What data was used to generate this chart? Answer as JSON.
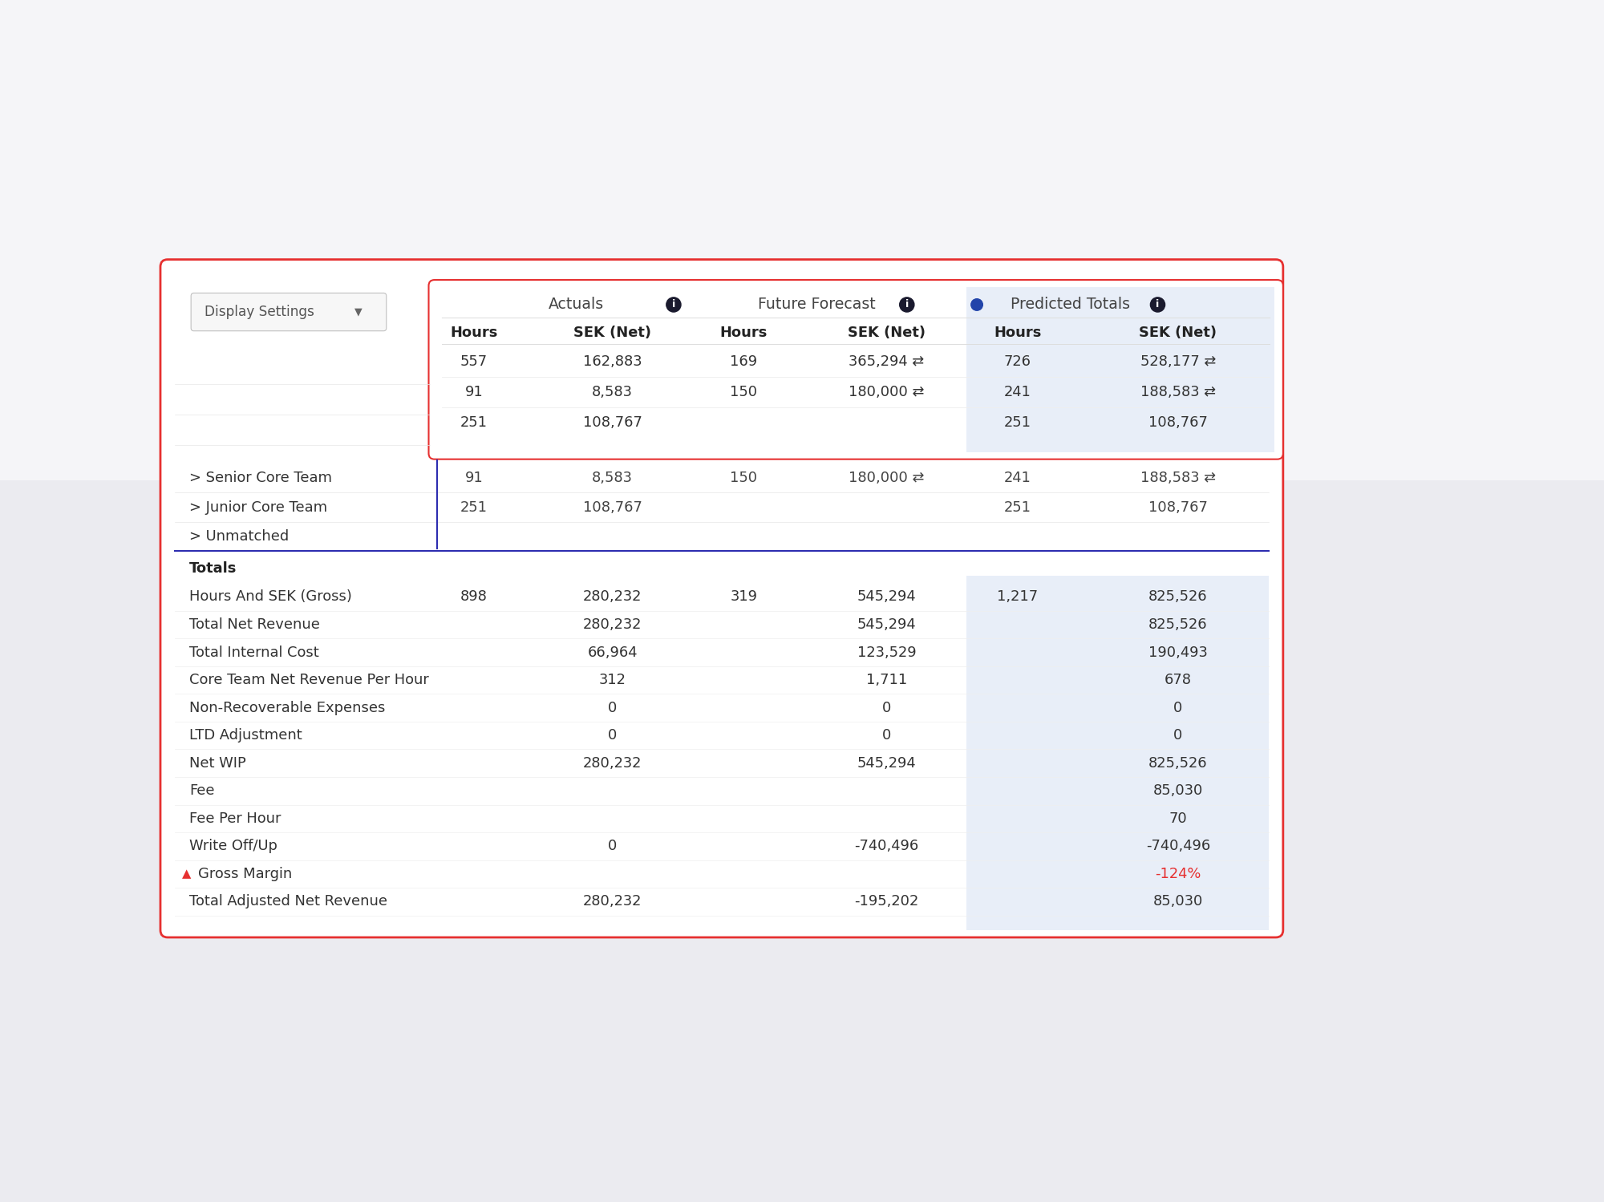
{
  "bg_color": "#ebebf0",
  "card_bg": "#ffffff",
  "card_border": "#e63030",
  "card_border2": "#2d2db0",
  "display_settings_label": "Display Settings",
  "section_header_actuals": "Actuals",
  "section_header_forecast": "Future Forecast",
  "section_header_predicted": "Predicted Totals",
  "top_rows": [
    [
      "557",
      "162,883",
      "169",
      "365,294 ⇄",
      "726",
      "528,177 ⇄"
    ],
    [
      "91",
      "8,583",
      "150",
      "180,000 ⇄",
      "241",
      "188,583 ⇄"
    ],
    [
      "251",
      "108,767",
      "",
      "",
      "251",
      "108,767"
    ]
  ],
  "tree_labels": [
    "> Senior Core Team",
    "> Junior Core Team",
    "> Unmatched"
  ],
  "tree_data": [
    [
      "91",
      "8,583",
      "150",
      "180,000 ⇄",
      "241",
      "188,583 ⇄"
    ],
    [
      "251",
      "108,767",
      "",
      "",
      "251",
      "108,767"
    ],
    [
      "",
      "",
      "",
      "",
      "",
      ""
    ]
  ],
  "section_totals_label": "Totals",
  "totals_rows": [
    [
      "Hours And SEK (Gross)",
      "898",
      "280,232",
      "319",
      "545,294",
      "1,217",
      "825,526"
    ],
    [
      "Total Net Revenue",
      "",
      "280,232",
      "",
      "545,294",
      "",
      "825,526"
    ],
    [
      "Total Internal Cost",
      "",
      "66,964",
      "",
      "123,529",
      "",
      "190,493"
    ],
    [
      "Core Team Net Revenue Per Hour",
      "",
      "312",
      "",
      "1,711",
      "",
      "678"
    ],
    [
      "Non-Recoverable Expenses",
      "",
      "0",
      "",
      "0",
      "",
      "0"
    ],
    [
      "LTD Adjustment",
      "",
      "0",
      "",
      "0",
      "",
      "0"
    ],
    [
      "Net WIP",
      "",
      "280,232",
      "",
      "545,294",
      "",
      "825,526"
    ],
    [
      "Fee",
      "",
      "",
      "",
      "",
      "",
      "85,030"
    ],
    [
      "Fee Per Hour",
      "",
      "",
      "",
      "",
      "",
      "70"
    ],
    [
      "Write Off/Up",
      "",
      "0",
      "",
      "-740,496",
      "",
      "-740,496"
    ],
    [
      "Gross Margin",
      "",
      "",
      "",
      "",
      "",
      "-124%"
    ],
    [
      "Total Adjusted Net Revenue",
      "",
      "280,232",
      "",
      "-195,202",
      "",
      "85,030"
    ]
  ],
  "gross_margin_color": "#e63030",
  "predicted_col_bg": "#e8eef8",
  "scale": 1.818
}
